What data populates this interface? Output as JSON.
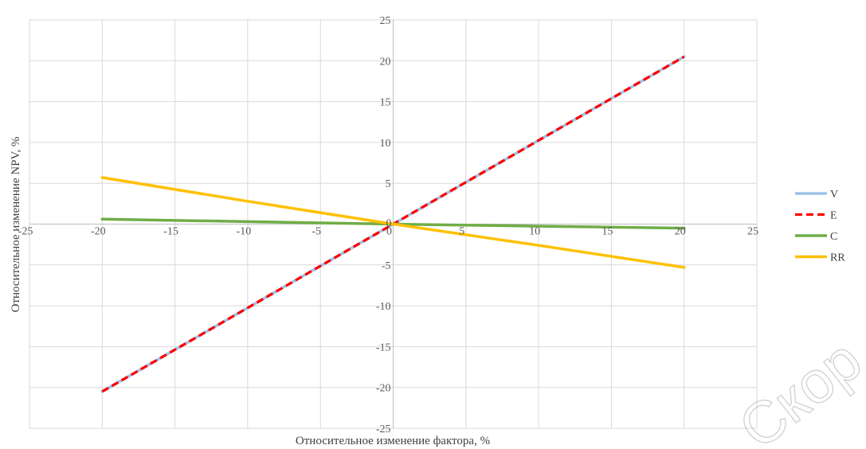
{
  "chart_data": {
    "type": "line",
    "title": "",
    "xlabel": "Относительное изменение фактора, %",
    "ylabel": "Относительное изменение NPV, %",
    "xlim": [
      -25,
      25
    ],
    "ylim": [
      -25,
      25
    ],
    "xticks": [
      -25,
      -20,
      -15,
      -10,
      -5,
      0,
      5,
      10,
      15,
      20,
      25
    ],
    "yticks": [
      -25,
      -20,
      -15,
      -10,
      -5,
      0,
      5,
      10,
      15,
      20,
      25
    ],
    "grid": true,
    "legend_position": "right",
    "x": [
      -20,
      -10,
      0,
      10,
      20
    ],
    "series": [
      {
        "name": "V",
        "values": [
          -20.5,
          -10.25,
          0,
          10.25,
          20.5
        ],
        "color": "#9DC3E6",
        "dash": "solid"
      },
      {
        "name": "E",
        "values": [
          -20.5,
          -10.25,
          0,
          10.25,
          20.5
        ],
        "color": "#FF0000",
        "dash": "dashed"
      },
      {
        "name": "C",
        "values": [
          0.6,
          0.3,
          0,
          -0.25,
          -0.5
        ],
        "color": "#70AD47",
        "dash": "solid"
      },
      {
        "name": "RR",
        "values": [
          5.7,
          2.8,
          0,
          -2.6,
          -5.3
        ],
        "color": "#FFC000",
        "dash": "solid"
      }
    ]
  },
  "watermark": {
    "text": "Скор"
  }
}
